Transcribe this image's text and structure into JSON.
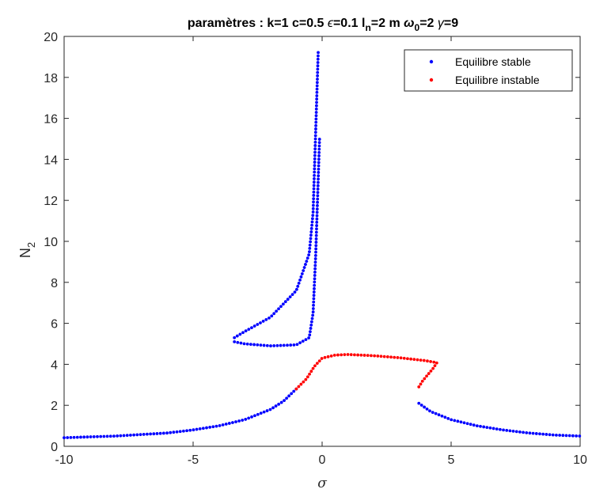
{
  "chart_data": {
    "type": "scatter",
    "title_parts": {
      "part1": "paramètres : k=1  c=0.5  ",
      "eps_sym": "ϵ",
      "part2": "=0.1  l",
      "sub_n": "n",
      "part3": "=2 m  ",
      "omega_sym": "ω",
      "sub_0": "0",
      "part4": "=2  ",
      "gamma_sym": "γ",
      "part5": "=9"
    },
    "xlabel": "σ",
    "ylabel": "N",
    "ylabel_sub": "2",
    "xlim": [
      -10,
      10
    ],
    "ylim": [
      0,
      20
    ],
    "xticks": [
      -10,
      -5,
      0,
      5,
      10
    ],
    "yticks": [
      0,
      2,
      4,
      6,
      8,
      10,
      12,
      14,
      16,
      18,
      20
    ],
    "grid": false,
    "legend_position": "top-right",
    "series": [
      {
        "name": "Equilibre stable",
        "color": "#0000ff",
        "branches": [
          {
            "x": [
              -10,
              -8,
              -6,
              -5,
              -4,
              -3,
              -2,
              -1.5,
              -1
            ],
            "y": [
              0.42,
              0.5,
              0.65,
              0.8,
              1.0,
              1.3,
              1.8,
              2.2,
              2.8
            ]
          },
          {
            "x": [
              3.75,
              4.2,
              5,
              6,
              7,
              8,
              9,
              10
            ],
            "y": [
              2.1,
              1.7,
              1.3,
              1.0,
              0.8,
              0.65,
              0.55,
              0.5
            ]
          },
          {
            "x": [
              -3.4,
              -3,
              -2,
              -1,
              -0.5,
              -0.35,
              -0.25,
              -0.1
            ],
            "y": [
              5.1,
              5.0,
              4.9,
              4.95,
              5.3,
              6.5,
              9.3,
              15.0
            ]
          },
          {
            "x": [
              -3.4,
              -3,
              -2,
              -1,
              -0.5,
              -0.35,
              -0.15
            ],
            "y": [
              5.3,
              5.6,
              6.3,
              7.6,
              9.4,
              11.4,
              19.3
            ]
          }
        ]
      },
      {
        "name": "Equilibre instable",
        "color": "#ff0000",
        "branches": [
          {
            "x": [
              -1,
              -0.6,
              -0.3,
              0,
              0.5,
              1,
              2,
              3,
              4,
              4.45
            ],
            "y": [
              2.8,
              3.3,
              3.9,
              4.3,
              4.45,
              4.48,
              4.42,
              4.32,
              4.18,
              4.08
            ]
          },
          {
            "x": [
              3.75,
              3.9,
              4.1,
              4.3,
              4.45
            ],
            "y": [
              2.9,
              3.2,
              3.5,
              3.8,
              4.08
            ]
          }
        ]
      }
    ]
  }
}
